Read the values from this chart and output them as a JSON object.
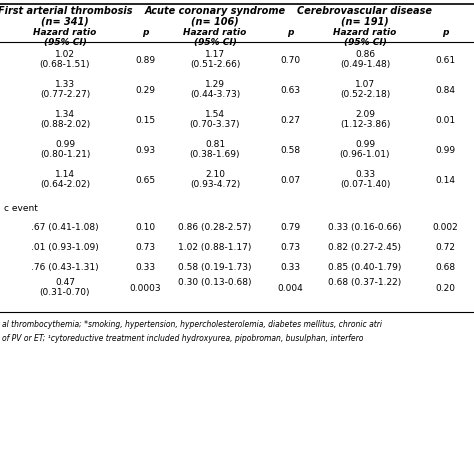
{
  "col_headers": [
    [
      "First arterial thrombosis",
      "(n= 341)"
    ],
    [
      "Acute coronary syndrome",
      "(n= 106)"
    ],
    [
      "Cerebrovascular disease",
      "(n= 191)"
    ]
  ],
  "section1_rows": [
    [
      "1.02\n(0.68-1.51)",
      "0.89",
      "1.17\n(0.51-2.66)",
      "0.70",
      "0.86\n(0.49-1.48)",
      "0.61"
    ],
    [
      "1.33\n(0.77-2.27)",
      "0.29",
      "1.29\n(0.44-3.73)",
      "0.63",
      "1.07\n(0.52-2.18)",
      "0.84"
    ],
    [
      "1.34\n(0.88-2.02)",
      "0.15",
      "1.54\n(0.70-3.37)",
      "0.27",
      "2.09\n(1.12-3.86)",
      "0.01"
    ],
    [
      "0.99\n(0.80-1.21)",
      "0.93",
      "0.81\n(0.38-1.69)",
      "0.58",
      "0.99\n(0.96-1.01)",
      "0.99"
    ],
    [
      "1.14\n(0.64-2.02)",
      "0.65",
      "2.10\n(0.93-4.72)",
      "0.07",
      "0.33\n(0.07-1.40)",
      "0.14"
    ]
  ],
  "section2_label": "c event",
  "section2_rows": [
    [
      ".67 (0.41-1.08)",
      "0.10",
      "0.86 (0.28-2.57)",
      "0.79",
      "0.33 (0.16-0.66)",
      "0.002"
    ],
    [
      ".01 (0.93-1.09)",
      "0.73",
      "1.02 (0.88-1.17)",
      "0.73",
      "0.82 (0.27-2.45)",
      "0.72"
    ],
    [
      ".76 (0.43-1.31)",
      "0.33",
      "0.58 (0.19-1.73)",
      "0.33",
      "0.85 (0.40-1.79)",
      "0.68"
    ],
    [
      "0.47\n(0.31-0.70)",
      "0.0003",
      "0.30 (0.13-0.68)",
      "0.004",
      "0.68 (0.37-1.22)",
      "0.20"
    ]
  ],
  "footnote1": "al thrombocythemia; *smoking, hypertension, hypercholesterolemia, diabetes mellitus, chronic atri",
  "footnote2": "of PV or ET; ¹cytoreductive treatment included hydroxyurea, pipobroman, busulphan, interfero",
  "bg_color": "#ffffff",
  "text_color": "#000000",
  "fs": 6.5,
  "hfs": 7.0,
  "ffs": 5.5
}
